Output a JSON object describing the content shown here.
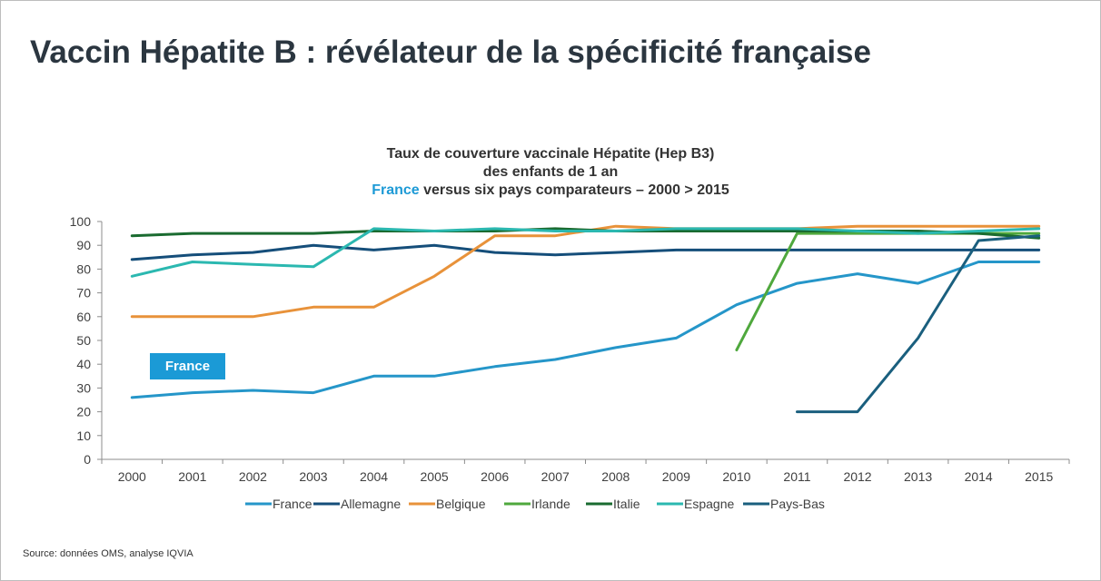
{
  "slide": {
    "title": "Vaccin Hépatite B : révélateur de la spécificité française",
    "source": "Source: données OMS, analyse IQVIA"
  },
  "chart_data": {
    "type": "line",
    "title_lines": [
      "Taux de couverture vaccinale Hépatite (Hep B3)",
      "des enfants de 1 an"
    ],
    "title_line3_highlight": "France",
    "title_line3_rest": " versus six pays comparateurs – 2000 > 2015",
    "xlabel": "",
    "ylabel": "",
    "ylim": [
      0,
      100
    ],
    "yticks": [
      0,
      10,
      20,
      30,
      40,
      50,
      60,
      70,
      80,
      90,
      100
    ],
    "categories": [
      "2000",
      "2001",
      "2002",
      "2003",
      "2004",
      "2005",
      "2006",
      "2007",
      "2008",
      "2009",
      "2010",
      "2011",
      "2012",
      "2013",
      "2014",
      "2015"
    ],
    "legend_position": "bottom",
    "annotation": "France",
    "series": [
      {
        "name": "France",
        "color": "#2596c9",
        "values": [
          26,
          28,
          29,
          28,
          35,
          35,
          39,
          42,
          47,
          51,
          65,
          74,
          78,
          74,
          83,
          83
        ]
      },
      {
        "name": "Allemagne",
        "color": "#154e7a",
        "values": [
          84,
          86,
          87,
          90,
          88,
          90,
          87,
          86,
          87,
          88,
          88,
          88,
          88,
          88,
          88,
          88
        ]
      },
      {
        "name": "Belgique",
        "color": "#e8923a",
        "values": [
          60,
          60,
          60,
          64,
          64,
          77,
          94,
          94,
          98,
          97,
          97,
          97,
          98,
          98,
          98,
          98
        ]
      },
      {
        "name": "Irlande",
        "color": "#4fa83d",
        "values": [
          null,
          null,
          null,
          null,
          null,
          null,
          null,
          null,
          null,
          null,
          46,
          95,
          95,
          95,
          95,
          95
        ]
      },
      {
        "name": "Italie",
        "color": "#1a6b30",
        "values": [
          94,
          95,
          95,
          95,
          96,
          96,
          96,
          97,
          96,
          96,
          96,
          96,
          96,
          96,
          95,
          93
        ]
      },
      {
        "name": "Espagne",
        "color": "#2bb8b0",
        "values": [
          77,
          83,
          82,
          81,
          97,
          96,
          97,
          96,
          96,
          97,
          97,
          97,
          96,
          95,
          96,
          97
        ]
      },
      {
        "name": "Pays-Bas",
        "color": "#1a5f7e",
        "values": [
          null,
          null,
          null,
          null,
          null,
          null,
          null,
          null,
          null,
          null,
          null,
          20,
          20,
          51,
          92,
          94
        ]
      }
    ]
  }
}
